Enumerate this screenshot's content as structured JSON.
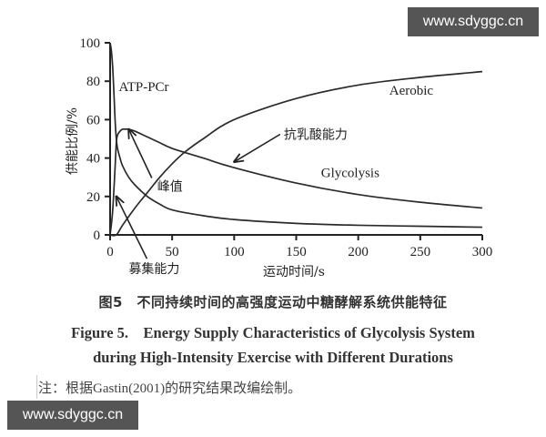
{
  "watermarks": {
    "top": "www.sdyggc.cn",
    "bottom": "www.sdyggc.cn"
  },
  "caption": {
    "cn": "图5　不同持续时间的高强度运动中糖酵解系统供能特征",
    "en_line1": "Figure 5.　Energy Supply Characteristics of Glycolysis System",
    "en_line2": "during High-Intensity Exercise with Different Durations"
  },
  "note": "注：根据Gastin(2001)的研究结果改编绘制。",
  "chart_data": {
    "type": "line",
    "title": "",
    "xlabel": "运动时间/s",
    "ylabel": "供能比例/%",
    "xlim": [
      0,
      300
    ],
    "ylim": [
      0,
      100
    ],
    "xticks": [
      0,
      50,
      100,
      150,
      200,
      250,
      300
    ],
    "yticks": [
      0,
      20,
      40,
      60,
      80,
      100
    ],
    "grid": false,
    "legend": "inline labels",
    "series": [
      {
        "name": "ATP-PCr",
        "x": [
          0,
          1,
          2,
          3,
          4,
          5,
          6,
          8,
          10,
          15,
          20,
          30,
          40,
          50,
          75,
          100,
          150,
          200,
          250,
          300
        ],
        "values": [
          100,
          96,
          88,
          75,
          60,
          50,
          45,
          40,
          36,
          30,
          26,
          20,
          16,
          13,
          10,
          8,
          6,
          5,
          4.5,
          4
        ]
      },
      {
        "name": "Glycolysis",
        "x": [
          0,
          2,
          4,
          5,
          6,
          8,
          10,
          12,
          15,
          20,
          30,
          40,
          50,
          75,
          100,
          150,
          200,
          250,
          300
        ],
        "values": [
          0,
          12,
          35,
          48,
          52,
          54,
          55,
          55,
          55,
          54,
          51,
          48,
          45,
          40,
          35,
          27,
          21,
          17,
          14
        ]
      },
      {
        "name": "Aerobic",
        "x": [
          0,
          5,
          10,
          20,
          30,
          40,
          50,
          60,
          75,
          100,
          150,
          200,
          250,
          300
        ],
        "values": [
          0,
          0,
          5,
          14,
          22,
          30,
          37,
          43,
          50,
          60,
          71,
          78,
          82,
          85
        ]
      }
    ],
    "annotations": [
      {
        "text": "ATP-PCr",
        "x": 7,
        "y": 75
      },
      {
        "text": "Aerobic",
        "x": 225,
        "y": 73
      },
      {
        "text": "Glycolysis",
        "x": 170,
        "y": 30
      },
      {
        "text": "抗乳酸能力",
        "x": 140,
        "y": 50,
        "arrow_to": [
          100,
          38
        ]
      },
      {
        "text": "峰值",
        "x": 38,
        "y": 23,
        "arrow_to": [
          15,
          55
        ]
      },
      {
        "text": "募集能力",
        "x": 15,
        "y": -20,
        "arrow_to": [
          5,
          20
        ]
      }
    ]
  }
}
